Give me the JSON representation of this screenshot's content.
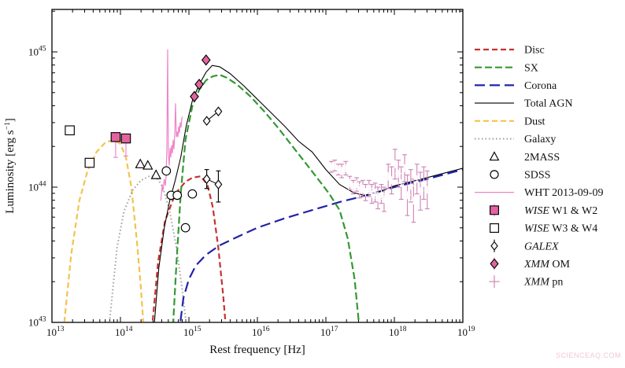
{
  "watermark": "SCIENCEAQ.COM",
  "chart_data": {
    "type": "line",
    "title": "",
    "xlabel": "Rest frequency [Hz]",
    "ylabel": "Luminosity [erg s^-1]",
    "ylabel_parts": [
      "Luminosity [erg s",
      "−1",
      "]"
    ],
    "xscale": "log",
    "yscale": "log",
    "x_tick_exponents": [
      13,
      14,
      15,
      16,
      17,
      18,
      19
    ],
    "y_tick_exponents": [
      43,
      44,
      45
    ],
    "xlim_exp": [
      13,
      19
    ],
    "ylim_exp": [
      43,
      45.31
    ],
    "grid": false,
    "legend_position": "outside-right",
    "series": [
      {
        "id": "dust",
        "name": "Dust",
        "color": "#f3c34d",
        "dash": "7,4",
        "width": 2.2,
        "points": [
          [
            13.18,
            43.0
          ],
          [
            13.28,
            43.5
          ],
          [
            13.4,
            43.9
          ],
          [
            13.52,
            44.12
          ],
          [
            13.65,
            44.26
          ],
          [
            13.78,
            44.33
          ],
          [
            13.9,
            44.35
          ],
          [
            14.0,
            44.32
          ],
          [
            14.08,
            44.22
          ],
          [
            14.16,
            44.0
          ],
          [
            14.24,
            43.6
          ],
          [
            14.3,
            43.25
          ],
          [
            14.34,
            42.95
          ]
        ]
      },
      {
        "id": "galaxy",
        "name": "Galaxy",
        "color": "#9e9e9e",
        "dash": "1.5,3",
        "width": 2,
        "points": [
          [
            13.83,
            42.95
          ],
          [
            13.95,
            43.55
          ],
          [
            14.05,
            43.82
          ],
          [
            14.18,
            43.98
          ],
          [
            14.3,
            44.05
          ],
          [
            14.42,
            44.08
          ],
          [
            14.52,
            44.08
          ],
          [
            14.62,
            44.0
          ],
          [
            14.72,
            43.82
          ],
          [
            14.82,
            43.55
          ],
          [
            14.9,
            43.25
          ],
          [
            14.97,
            42.95
          ]
        ]
      },
      {
        "id": "disc",
        "name": "Disc",
        "color": "#c5322f",
        "dash": "7,4",
        "width": 2.2,
        "points": [
          [
            14.46,
            42.95
          ],
          [
            14.55,
            43.45
          ],
          [
            14.65,
            43.75
          ],
          [
            14.8,
            43.95
          ],
          [
            14.95,
            44.04
          ],
          [
            15.05,
            44.07
          ],
          [
            15.17,
            44.08
          ],
          [
            15.27,
            44.02
          ],
          [
            15.35,
            43.85
          ],
          [
            15.43,
            43.55
          ],
          [
            15.5,
            43.2
          ],
          [
            15.55,
            42.9
          ]
        ]
      },
      {
        "id": "corona",
        "name": "Corona",
        "color": "#2222aa",
        "dash": "13,6",
        "width": 2.2,
        "points": [
          [
            14.85,
            42.9
          ],
          [
            14.92,
            43.18
          ],
          [
            15.0,
            43.32
          ],
          [
            15.1,
            43.42
          ],
          [
            15.25,
            43.5
          ],
          [
            15.45,
            43.57
          ],
          [
            15.7,
            43.63
          ],
          [
            16.0,
            43.7
          ],
          [
            16.4,
            43.77
          ],
          [
            16.8,
            43.83
          ],
          [
            17.2,
            43.89
          ],
          [
            17.6,
            43.94
          ],
          [
            18.0,
            44.0
          ],
          [
            18.4,
            44.05
          ],
          [
            18.7,
            44.09
          ],
          [
            19.0,
            44.13
          ]
        ]
      },
      {
        "id": "sx",
        "name": "SX",
        "color": "#339933",
        "dash": "9,4",
        "width": 2.2,
        "points": [
          [
            14.76,
            42.9
          ],
          [
            14.82,
            43.45
          ],
          [
            14.88,
            43.95
          ],
          [
            14.95,
            44.35
          ],
          [
            15.05,
            44.6
          ],
          [
            15.15,
            44.72
          ],
          [
            15.25,
            44.79
          ],
          [
            15.35,
            44.82
          ],
          [
            15.45,
            44.83
          ],
          [
            15.55,
            44.81
          ],
          [
            15.7,
            44.76
          ],
          [
            15.9,
            44.67
          ],
          [
            16.1,
            44.56
          ],
          [
            16.3,
            44.44
          ],
          [
            16.5,
            44.31
          ],
          [
            16.7,
            44.18
          ],
          [
            16.9,
            44.05
          ],
          [
            17.05,
            43.95
          ],
          [
            17.2,
            43.83
          ],
          [
            17.32,
            43.62
          ],
          [
            17.42,
            43.32
          ],
          [
            17.5,
            42.9
          ]
        ]
      },
      {
        "id": "total-agn",
        "name": "Total AGN",
        "color": "#000000",
        "dash": "",
        "width": 1.1,
        "points": [
          [
            14.48,
            42.9
          ],
          [
            14.56,
            43.4
          ],
          [
            14.64,
            43.7
          ],
          [
            14.72,
            43.9
          ],
          [
            14.8,
            44.05
          ],
          [
            14.88,
            44.22
          ],
          [
            14.96,
            44.45
          ],
          [
            15.05,
            44.64
          ],
          [
            15.15,
            44.76
          ],
          [
            15.25,
            44.85
          ],
          [
            15.34,
            44.9
          ],
          [
            15.45,
            44.89
          ],
          [
            15.6,
            44.84
          ],
          [
            15.8,
            44.75
          ],
          [
            16.0,
            44.65
          ],
          [
            16.2,
            44.55
          ],
          [
            16.4,
            44.45
          ],
          [
            16.6,
            44.34
          ],
          [
            16.8,
            44.26
          ],
          [
            17.0,
            44.13
          ],
          [
            17.2,
            44.02
          ],
          [
            17.4,
            43.96
          ],
          [
            17.56,
            43.94
          ],
          [
            17.7,
            43.955
          ],
          [
            17.8,
            43.97
          ],
          [
            18.0,
            44.01
          ],
          [
            18.4,
            44.06
          ],
          [
            18.7,
            44.1
          ],
          [
            19.0,
            44.14
          ]
        ]
      },
      {
        "id": "wht",
        "name": "WHT 2013-09-09",
        "color": "#ee85c9",
        "dash": "",
        "width": 1.2,
        "points": [
          [
            14.59,
            43.9
          ],
          [
            14.61,
            44.02
          ],
          [
            14.62,
            43.97
          ],
          [
            14.64,
            44.06
          ],
          [
            14.655,
            44.01
          ],
          [
            14.667,
            44.08
          ],
          [
            14.678,
            44.3
          ],
          [
            14.69,
            45.02
          ],
          [
            14.7,
            44.24
          ],
          [
            14.713,
            44.16
          ],
          [
            14.724,
            44.29
          ],
          [
            14.736,
            44.22
          ],
          [
            14.747,
            44.31
          ],
          [
            14.759,
            44.25
          ],
          [
            14.77,
            44.35
          ],
          [
            14.782,
            44.28
          ],
          [
            14.793,
            44.4
          ],
          [
            14.805,
            44.62
          ],
          [
            14.816,
            44.37
          ],
          [
            14.828,
            44.41
          ],
          [
            14.839,
            44.37
          ],
          [
            14.851,
            44.45
          ],
          [
            14.862,
            44.4
          ],
          [
            14.874,
            44.48
          ],
          [
            14.885,
            44.44
          ],
          [
            14.897,
            44.51
          ],
          [
            14.908,
            44.52
          ]
        ]
      }
    ],
    "scatter": [
      {
        "id": "wise-w34",
        "name": "WISE W3 & W4",
        "marker": "square",
        "points": [
          [
            13.26,
            44.42
          ],
          [
            13.55,
            44.18
          ]
        ]
      },
      {
        "id": "wise-w12",
        "name": "WISE W1 & W2",
        "marker": "square-filled",
        "fill": "#e2649f",
        "err_color": "#ee85c9",
        "points": [
          [
            13.93,
            44.37,
            0.15,
            0.0
          ],
          [
            14.08,
            44.36,
            0.13,
            0.0
          ]
        ]
      },
      {
        "id": "2mass",
        "name": "2MASS",
        "marker": "triangle",
        "points": [
          [
            14.29,
            44.17
          ],
          [
            14.4,
            44.16
          ],
          [
            14.52,
            44.09
          ]
        ]
      },
      {
        "id": "sdss",
        "name": "SDSS",
        "marker": "circle",
        "points": [
          [
            14.67,
            44.12
          ],
          [
            14.74,
            43.94
          ],
          [
            14.83,
            43.94
          ],
          [
            15.05,
            43.95
          ],
          [
            14.95,
            43.7
          ]
        ]
      },
      {
        "id": "galex",
        "name": "GALEX",
        "marker": "diamond",
        "connect": true,
        "groups": [
          [
            [
              15.26,
              44.49
            ],
            [
              15.43,
              44.56
            ]
          ],
          [
            [
              15.26,
              44.06,
              0.07,
              0.07
            ],
            [
              15.43,
              44.02,
              0.13,
              0.1
            ]
          ]
        ]
      },
      {
        "id": "xmm-om",
        "name": "XMM OM",
        "marker": "diamond-filled",
        "fill": "#e2649f",
        "points": [
          [
            15.08,
            44.67
          ],
          [
            15.15,
            44.76
          ],
          [
            15.25,
            44.94
          ]
        ]
      },
      {
        "id": "xmm-pn",
        "name": "XMM pn",
        "marker": "plus",
        "err_color": "#cf87b7",
        "points": [
          [
            17.08,
            44.15,
            0.04
          ],
          [
            17.13,
            44.16,
            0.04
          ],
          [
            17.18,
            44.13,
            0.04
          ],
          [
            17.23,
            44.12,
            0.05
          ],
          [
            17.29,
            44.14,
            0.05
          ],
          [
            17.35,
            44.03,
            0.05
          ],
          [
            17.4,
            44.0,
            0.05
          ],
          [
            17.45,
            44.02,
            0.05
          ],
          [
            17.49,
            43.98,
            0.06
          ],
          [
            17.54,
            43.99,
            0.06
          ],
          [
            17.58,
            43.96,
            0.06
          ],
          [
            17.63,
            43.99,
            0.06
          ],
          [
            17.67,
            43.95,
            0.07
          ],
          [
            17.72,
            43.96,
            0.07
          ],
          [
            17.76,
            43.92,
            0.08
          ],
          [
            17.81,
            43.95,
            0.07
          ],
          [
            17.85,
            43.91,
            0.09
          ],
          [
            17.91,
            44.08,
            0.09
          ],
          [
            17.96,
            44.05,
            0.1
          ],
          [
            18.01,
            44.17,
            0.11
          ],
          [
            18.06,
            44.1,
            0.1
          ],
          [
            18.1,
            44.03,
            0.12
          ],
          [
            18.15,
            44.14,
            0.1
          ],
          [
            18.19,
            43.94,
            0.15
          ],
          [
            18.24,
            44.01,
            0.12
          ],
          [
            18.28,
            43.9,
            0.16
          ],
          [
            18.33,
            44.06,
            0.11
          ],
          [
            18.38,
            43.97,
            0.14
          ],
          [
            18.43,
            44.03,
            0.12
          ],
          [
            18.48,
            43.98,
            0.14
          ]
        ]
      }
    ],
    "legend": {
      "items": [
        {
          "id": "disc",
          "italic": "",
          "label": "Disc",
          "swatch": "line",
          "color": "#c5322f",
          "dash": "7,4",
          "lw": 2.2
        },
        {
          "id": "sx",
          "italic": "",
          "label": "SX",
          "swatch": "line",
          "color": "#339933",
          "dash": "9,4",
          "lw": 2.2
        },
        {
          "id": "corona",
          "italic": "",
          "label": "Corona",
          "swatch": "line",
          "color": "#2222aa",
          "dash": "13,6",
          "lw": 2.2
        },
        {
          "id": "total-agn",
          "italic": "",
          "label": "Total AGN",
          "swatch": "line",
          "color": "#000000",
          "dash": "",
          "lw": 1.1
        },
        {
          "id": "dust",
          "italic": "",
          "label": "Dust",
          "swatch": "line",
          "color": "#f3c34d",
          "dash": "7,4",
          "lw": 2.2
        },
        {
          "id": "galaxy",
          "italic": "",
          "label": "Galaxy",
          "swatch": "line",
          "color": "#9e9e9e",
          "dash": "1.5,3",
          "lw": 2
        },
        {
          "id": "2mass",
          "italic": "",
          "label": "2MASS",
          "swatch": "marker",
          "marker": "triangle"
        },
        {
          "id": "sdss",
          "italic": "",
          "label": "SDSS",
          "swatch": "marker",
          "marker": "circle"
        },
        {
          "id": "wht",
          "italic": "",
          "label": "WHT 2013-09-09",
          "swatch": "line",
          "color": "#ee85c9",
          "dash": "",
          "lw": 1.2
        },
        {
          "id": "wise-w12",
          "italic": "WISE",
          "label": " W1 & W2",
          "swatch": "marker",
          "marker": "square-filled-err"
        },
        {
          "id": "wise-w34",
          "italic": "WISE",
          "label": " W3 & W4",
          "swatch": "marker",
          "marker": "square"
        },
        {
          "id": "galex",
          "italic": "GALEX",
          "label": "",
          "swatch": "marker",
          "marker": "diamond-err"
        },
        {
          "id": "xmm-om",
          "italic": "XMM",
          "label": " OM",
          "swatch": "marker",
          "marker": "diamond-filled-err"
        },
        {
          "id": "xmm-pn",
          "italic": "XMM",
          "label": " pn",
          "swatch": "marker",
          "marker": "plus"
        }
      ]
    },
    "colors": {
      "marker_pink_fill": "#e2649f",
      "wht_pink": "#ee85c9",
      "pn_pink": "#cf87b7",
      "disc_red": "#c5322f",
      "sx_green": "#339933",
      "corona_blue": "#2222aa",
      "dust_orange": "#f3c34d",
      "galaxy_gray": "#9e9e9e"
    }
  }
}
